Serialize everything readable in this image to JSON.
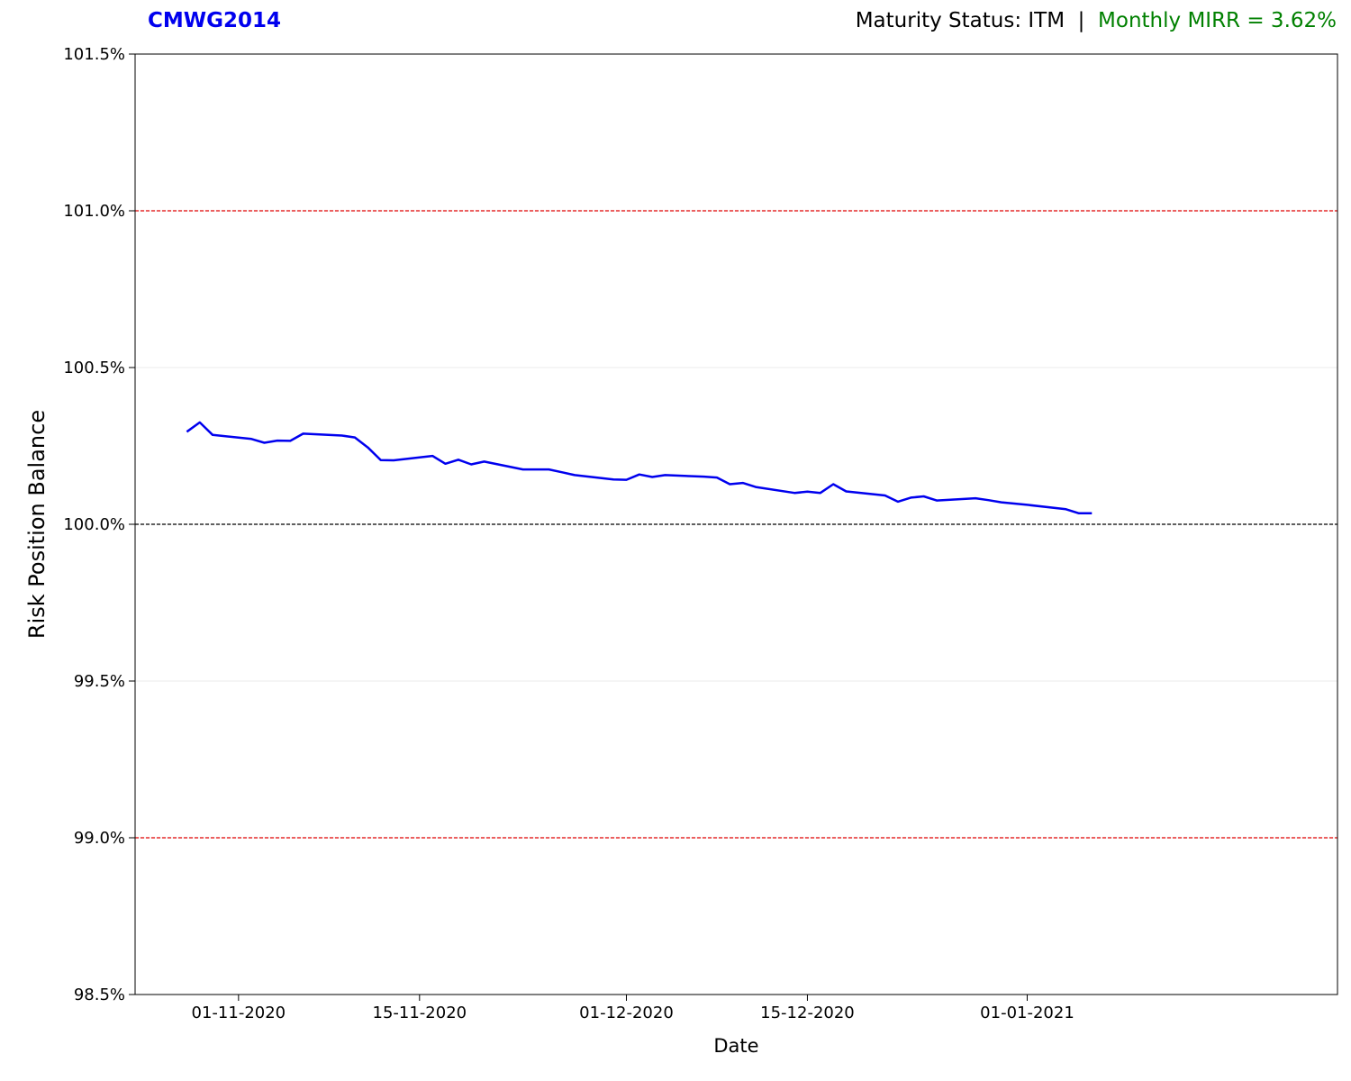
{
  "header": {
    "code": "CMWG2014",
    "status_text": "Maturity Status: ITM  |  ",
    "mirr_text": "Monthly MIRR = 3.62%"
  },
  "colors": {
    "code": "#0000ee",
    "mirr": "#008000",
    "line": "#0000ee",
    "threshold": "#e00000",
    "baseline": "#000000"
  },
  "chart_data": {
    "type": "line",
    "xlabel": "Date",
    "ylabel": "Risk Position Balance",
    "ylim": [
      98.5,
      101.5
    ],
    "xlim": [
      "2020-10-24",
      "2021-01-25"
    ],
    "yticks": [
      98.5,
      99.0,
      99.5,
      100.0,
      100.5,
      101.0,
      101.5
    ],
    "ytick_labels": [
      "98.5%",
      "99.0%",
      "99.5%",
      "100.0%",
      "100.5%",
      "101.0%",
      "101.5%"
    ],
    "xticks": [
      "2020-11-01",
      "2020-11-15",
      "2020-12-01",
      "2020-12-15",
      "2021-01-01"
    ],
    "xtick_labels": [
      "01-11-2020",
      "15-11-2020",
      "01-12-2020",
      "15-12-2020",
      "01-01-2021"
    ],
    "hlines": [
      {
        "y": 101.0,
        "style": "dashed",
        "color": "#e00000"
      },
      {
        "y": 100.0,
        "style": "dashed",
        "color": "#000000"
      },
      {
        "y": 99.0,
        "style": "dashed",
        "color": "#e00000"
      }
    ],
    "grid": "horizontal-light",
    "series": [
      {
        "x": [
          "2020-10-28",
          "2020-10-29",
          "2020-10-30",
          "2020-11-02",
          "2020-11-03",
          "2020-11-04",
          "2020-11-05",
          "2020-11-06",
          "2020-11-09",
          "2020-11-10",
          "2020-11-11",
          "2020-11-12",
          "2020-11-13",
          "2020-11-16",
          "2020-11-17",
          "2020-11-18",
          "2020-11-19",
          "2020-11-20",
          "2020-11-23",
          "2020-11-24",
          "2020-11-25",
          "2020-11-26",
          "2020-11-27",
          "2020-11-30",
          "2020-12-01",
          "2020-12-02",
          "2020-12-03",
          "2020-12-04",
          "2020-12-07",
          "2020-12-08",
          "2020-12-09",
          "2020-12-10",
          "2020-12-11",
          "2020-12-14",
          "2020-12-15",
          "2020-12-16",
          "2020-12-17",
          "2020-12-18",
          "2020-12-21",
          "2020-12-22",
          "2020-12-23",
          "2020-12-24",
          "2020-12-25",
          "2020-12-28",
          "2020-12-29",
          "2020-12-30",
          "2021-01-01",
          "2021-01-04",
          "2021-01-05",
          "2021-01-06"
        ],
        "y": [
          100.295,
          100.325,
          100.285,
          100.272,
          100.26,
          100.267,
          100.266,
          100.289,
          100.283,
          100.277,
          100.245,
          100.205,
          100.204,
          100.218,
          100.193,
          100.206,
          100.191,
          100.2,
          100.175,
          100.175,
          100.175,
          100.166,
          100.157,
          100.143,
          100.142,
          100.159,
          100.151,
          100.157,
          100.152,
          100.149,
          100.128,
          100.132,
          100.119,
          100.1,
          100.104,
          100.1,
          100.128,
          100.105,
          100.092,
          100.072,
          100.085,
          100.089,
          100.076,
          100.083,
          100.077,
          100.07,
          100.062,
          100.048,
          100.035,
          100.035
        ]
      }
    ]
  }
}
